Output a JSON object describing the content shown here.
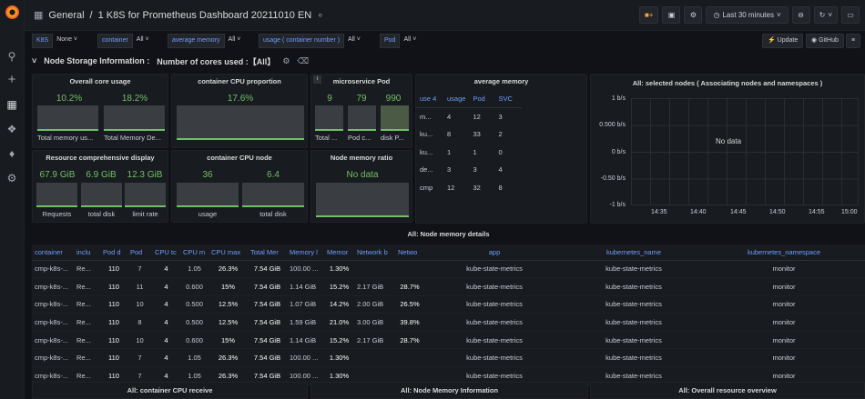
{
  "topbar": {
    "breadcrumb_root": "General",
    "breadcrumb_sep": "/",
    "title": "1 K8S for Prometheus Dashboard 20211010 EN",
    "time_range": "Last 30 minutes"
  },
  "variables": [
    {
      "label": "K8S",
      "value": "None"
    },
    {
      "label": "container",
      "value": "All"
    },
    {
      "label": "average memory",
      "value": "All"
    },
    {
      "label": "usage ( container number )",
      "value": "All"
    },
    {
      "label": "Pod",
      "value": "All"
    }
  ],
  "actions": {
    "update": "Update",
    "github": "GitHub"
  },
  "row": {
    "title": "Node Storage Information :",
    "subtitle": "Number of cores used :【All】"
  },
  "panels": {
    "overall_core": {
      "title": "Overall core usage",
      "v1": "10.2%",
      "v2": "18.2%",
      "l1": "Total memory us...",
      "l2": "Total Memory De..."
    },
    "cpu_prop": {
      "title": "container CPU proportion",
      "v1": "17.6%"
    },
    "micro": {
      "title": "microservice Pod",
      "v1": "9",
      "v2": "79",
      "v3": "990",
      "l1": "Total ...",
      "l2": "Pod c...",
      "l3": "disk P..."
    },
    "avg_mem": {
      "title": "average memory",
      "headers": [
        "use 4",
        "usage",
        "Pod",
        "SVC"
      ],
      "rows": [
        [
          "m...",
          "4",
          "12",
          "3"
        ],
        [
          "ku...",
          "8",
          "33",
          "2"
        ],
        [
          "ku...",
          "1",
          "1",
          "0"
        ],
        [
          "de...",
          "3",
          "3",
          "4"
        ],
        [
          "cmp",
          "12",
          "32",
          "8"
        ]
      ]
    },
    "selected_nodes": {
      "title": "All:  selected nodes  ( Associating nodes and namespaces )",
      "nodata": "No data",
      "yticks": [
        "1 b/s",
        "0.500 b/s",
        "0 b/s",
        "-0.50 b/s",
        "-1 b/s"
      ],
      "xticks": [
        "14:35",
        "14:40",
        "14:45",
        "14:50",
        "14:55",
        "15:00"
      ]
    },
    "resource": {
      "title": "Resource comprehensive display",
      "v1": "67.9 GiB",
      "v2": "6.9 GiB",
      "v3": "12.3 GiB",
      "l1": "Requests",
      "l2": "total disk",
      "l3": "limit rate"
    },
    "cpu_node": {
      "title": "container CPU node",
      "v1": "36",
      "v2": "6.4",
      "l1": "usage",
      "l2": "total disk"
    },
    "node_mem": {
      "title": "Node memory ratio",
      "nodata": "No data"
    }
  },
  "details": {
    "title": "All:  Node memory details",
    "headers": [
      "container",
      "inclu",
      "Pod d",
      "Pod",
      "CPU tc",
      "CPU m",
      "CPU max",
      "Total Mer",
      "Memory l",
      "Memor",
      "Network b",
      "Netwo",
      "app",
      "kubernetes_name",
      "kubernetes_namespace"
    ],
    "rows": [
      [
        "cmp-k8s-...",
        "Re...",
        "110",
        "7",
        "4",
        "1.05",
        "26.3%",
        "7.54 GiB",
        "100.00 ...",
        "1.30%",
        "",
        "",
        "kube-state-metrics",
        "kube-state-metrics",
        "monitor"
      ],
      [
        "cmp-k8s-...",
        "Re...",
        "110",
        "11",
        "4",
        "0.600",
        "15%",
        "7.54 GiB",
        "1.14 GiB",
        "15.2%",
        "2.17 GiB",
        "28.7%",
        "kube-state-metrics",
        "kube-state-metrics",
        "monitor"
      ],
      [
        "cmp-k8s-...",
        "Re...",
        "110",
        "10",
        "4",
        "0.500",
        "12.5%",
        "7.54 GiB",
        "1.07 GiB",
        "14.2%",
        "2.00 GiB",
        "26.5%",
        "kube-state-metrics",
        "kube-state-metrics",
        "monitor"
      ],
      [
        "cmp-k8s-...",
        "Re...",
        "110",
        "8",
        "4",
        "0.500",
        "12.5%",
        "7.54 GiB",
        "1.59 GiB",
        "21.0%",
        "3.00 GiB",
        "39.8%",
        "kube-state-metrics",
        "kube-state-metrics",
        "monitor"
      ],
      [
        "cmp-k8s-...",
        "Re...",
        "110",
        "10",
        "4",
        "0.600",
        "15%",
        "7.54 GiB",
        "1.14 GiB",
        "15.2%",
        "2.17 GiB",
        "28.7%",
        "kube-state-metrics",
        "kube-state-metrics",
        "monitor"
      ],
      [
        "cmp-k8s-...",
        "Re...",
        "110",
        "7",
        "4",
        "1.05",
        "26.3%",
        "7.54 GiB",
        "100.00 ...",
        "1.30%",
        "",
        "",
        "kube-state-metrics",
        "kube-state-metrics",
        "monitor"
      ],
      [
        "cmp-k8s-...",
        "Re...",
        "110",
        "7",
        "4",
        "1.05",
        "26.3%",
        "7.54 GiB",
        "100.00 ...",
        "1.30%",
        "",
        "",
        "kube-state-metrics",
        "kube-state-metrics",
        "monitor"
      ]
    ]
  },
  "bottom": [
    "All:  container CPU receive",
    "All:  Node Memory Information",
    "All:  Overall resource overview"
  ]
}
